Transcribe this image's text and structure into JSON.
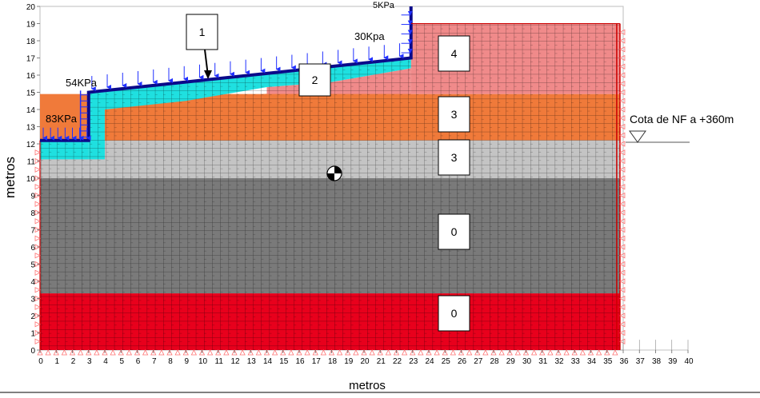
{
  "axes": {
    "x_label": "metros",
    "y_label": "metros",
    "x_ticks": [
      "0",
      "1",
      "2",
      "3",
      "4",
      "5",
      "6",
      "7",
      "8",
      "9",
      "10",
      "11",
      "12",
      "13",
      "14",
      "15",
      "16",
      "17",
      "18",
      "19",
      "20",
      "21",
      "22",
      "23",
      "24",
      "25",
      "26",
      "27",
      "28",
      "29",
      "30",
      "31",
      "32",
      "33",
      "34",
      "35",
      "36",
      "37",
      "38",
      "39",
      "40"
    ],
    "y_ticks": [
      "0",
      "1",
      "2",
      "3",
      "4",
      "5",
      "6",
      "7",
      "8",
      "9",
      "10",
      "11",
      "12",
      "13",
      "14",
      "15",
      "16",
      "17",
      "18",
      "19",
      "20"
    ],
    "x_range": [
      0,
      40
    ],
    "y_range": [
      0,
      20
    ]
  },
  "loads": {
    "load_83": "83KPa",
    "load_54": "54KPa",
    "load_30": "30Kpa",
    "load_5": "5KPa"
  },
  "water_table": {
    "label": "Cota de NF a +360m",
    "elevation": 12.2
  },
  "region_labels": {
    "fill_1": "1",
    "fill_2": "2",
    "layer_4": "4",
    "layer_3_upper": "3",
    "layer_3_lower": "3",
    "layer_0_upper": "0",
    "layer_0_lower": "0"
  },
  "layers": [
    {
      "id": "layer-red-bottom",
      "color": "#e8001c",
      "y_bottom": 0,
      "y_top": 3.3
    },
    {
      "id": "layer-dark-gray",
      "color": "#7a7a7a",
      "y_bottom": 3.3,
      "y_top": 10
    },
    {
      "id": "layer-light-gray",
      "color": "#c4c4c4",
      "y_bottom": 10,
      "y_top": 12.2
    },
    {
      "id": "layer-orange",
      "color": "#f07a3a",
      "y_bottom": 12.2,
      "y_top": 14.9
    },
    {
      "id": "layer-pink",
      "color": "#f08a8a",
      "y_bottom": 14.9,
      "y_top": 19
    }
  ],
  "colors": {
    "fill_cyan": "#1fe0e0",
    "surface_line": "#0a0a8a",
    "load_arrow": "#2030ff",
    "support": "#ff7070"
  }
}
